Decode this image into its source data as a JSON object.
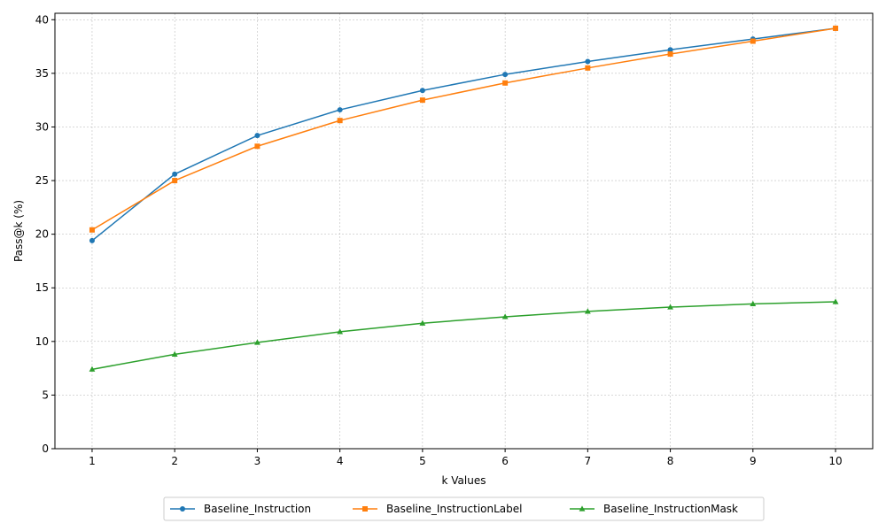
{
  "chart_data": {
    "type": "line",
    "title": "",
    "xlabel": "k Values",
    "ylabel": "Pass@k (%)",
    "x": [
      1,
      2,
      3,
      4,
      5,
      6,
      7,
      8,
      9,
      10
    ],
    "xlim": [
      0.55,
      10.45
    ],
    "ylim": [
      0,
      40.6
    ],
    "xticks": [
      1,
      2,
      3,
      4,
      5,
      6,
      7,
      8,
      9,
      10
    ],
    "yticks": [
      0,
      5,
      10,
      15,
      20,
      25,
      30,
      35,
      40
    ],
    "grid": true,
    "legend_position": "bottom-center",
    "series": [
      {
        "name": "Baseline_Instruction",
        "color": "#1f77b4",
        "marker": "circle",
        "values": [
          19.4,
          25.6,
          29.2,
          31.6,
          33.4,
          34.9,
          36.1,
          37.2,
          38.2,
          39.2
        ]
      },
      {
        "name": "Baseline_InstructionLabel",
        "color": "#ff7f0e",
        "marker": "square",
        "values": [
          20.4,
          25.0,
          28.2,
          30.6,
          32.5,
          34.1,
          35.5,
          36.8,
          38.0,
          39.2
        ]
      },
      {
        "name": "Baseline_InstructionMask",
        "color": "#2ca02c",
        "marker": "triangle",
        "values": [
          7.4,
          8.8,
          9.9,
          10.9,
          11.7,
          12.3,
          12.8,
          13.2,
          13.5,
          13.7
        ]
      }
    ]
  }
}
